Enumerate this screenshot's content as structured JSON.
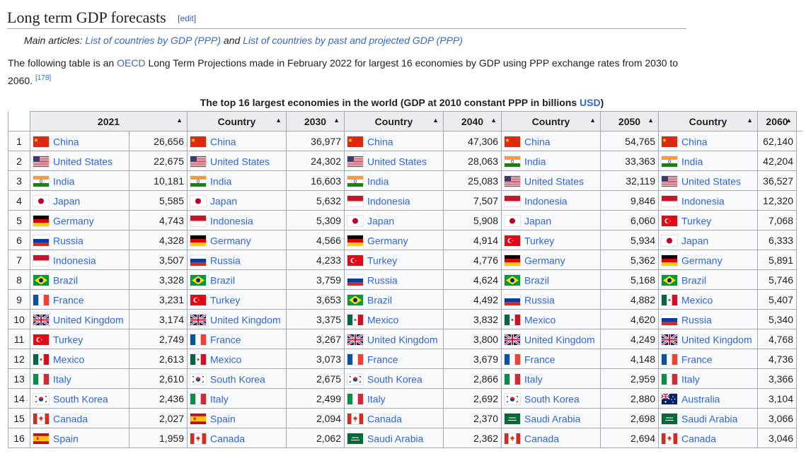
{
  "heading": {
    "title": "Long term GDP forecasts",
    "edit_label": "edit",
    "edit_open": "[",
    "edit_close": "]"
  },
  "hatnote": {
    "prefix": "Main articles:",
    "link1": "List of countries by GDP (PPP)",
    "and": "and",
    "link2": "List of countries by past and projected GDP (PPP)"
  },
  "paragraph": {
    "before_link": "The following table is an",
    "link": "OECD",
    "after_link": "Long Term Projections made in February 2022 for largest 16 economies by GDP using PPP exchange rates from 2030 to 2060.",
    "ref": "[178]"
  },
  "caption": {
    "text": "The top 16 largest economies in the world (GDP at 2010 constant PPP in billions",
    "link": "USD",
    "close": ")"
  },
  "colors": {
    "link": "#3366cc",
    "highlight": "#f77f86",
    "header_bg": "#eaecf0",
    "cell_bg": "#f8f9fa",
    "border": "#a2a9b1"
  },
  "table": {
    "headers": [
      "2021",
      "Country",
      "2030",
      "Country",
      "2040",
      "Country",
      "2050",
      "Country",
      "2060"
    ],
    "highlight_country": "Turkey",
    "rows": [
      {
        "rank": "1",
        "cells": [
          [
            "China",
            "26,656"
          ],
          [
            "China",
            "36,977"
          ],
          [
            "China",
            "47,306"
          ],
          [
            "China",
            "54,765"
          ],
          [
            "China",
            "62,140"
          ]
        ]
      },
      {
        "rank": "2",
        "cells": [
          [
            "United States",
            "22,675"
          ],
          [
            "United States",
            "24,302"
          ],
          [
            "United States",
            "28,063"
          ],
          [
            "India",
            "33,363"
          ],
          [
            "India",
            "42,204"
          ]
        ]
      },
      {
        "rank": "3",
        "cells": [
          [
            "India",
            "10,181"
          ],
          [
            "India",
            "16,603"
          ],
          [
            "India",
            "25,083"
          ],
          [
            "United States",
            "32,119"
          ],
          [
            "United States",
            "36,527"
          ]
        ]
      },
      {
        "rank": "4",
        "cells": [
          [
            "Japan",
            "5,585"
          ],
          [
            "Japan",
            "5,632"
          ],
          [
            "Indonesia",
            "7,507"
          ],
          [
            "Indonesia",
            "9,846"
          ],
          [
            "Indonesia",
            "12,320"
          ]
        ]
      },
      {
        "rank": "5",
        "cells": [
          [
            "Germany",
            "4,743"
          ],
          [
            "Indonesia",
            "5,309"
          ],
          [
            "Japan",
            "5,908"
          ],
          [
            "Japan",
            "6,060"
          ],
          [
            "Turkey",
            "7,068"
          ]
        ]
      },
      {
        "rank": "6",
        "cells": [
          [
            "Russia",
            "4,328"
          ],
          [
            "Germany",
            "4,566"
          ],
          [
            "Germany",
            "4,914"
          ],
          [
            "Turkey",
            "5,934"
          ],
          [
            "Japan",
            "6,333"
          ]
        ]
      },
      {
        "rank": "7",
        "cells": [
          [
            "Indonesia",
            "3,507"
          ],
          [
            "Russia",
            "4,233"
          ],
          [
            "Turkey",
            "4,776"
          ],
          [
            "Germany",
            "5,362"
          ],
          [
            "Germany",
            "5,891"
          ]
        ]
      },
      {
        "rank": "8",
        "cells": [
          [
            "Brazil",
            "3,328"
          ],
          [
            "Brazil",
            "3,759"
          ],
          [
            "Russia",
            "4,624"
          ],
          [
            "Brazil",
            "5,168"
          ],
          [
            "Brazil",
            "5,746"
          ]
        ]
      },
      {
        "rank": "9",
        "cells": [
          [
            "France",
            "3,231"
          ],
          [
            "Turkey",
            "3,653"
          ],
          [
            "Brazil",
            "4,492"
          ],
          [
            "Russia",
            "4,882"
          ],
          [
            "Mexico",
            "5,407"
          ]
        ]
      },
      {
        "rank": "10",
        "cells": [
          [
            "United Kingdom",
            "3,174"
          ],
          [
            "United Kingdom",
            "3,375"
          ],
          [
            "Mexico",
            "3,832"
          ],
          [
            "Mexico",
            "4,620"
          ],
          [
            "Russia",
            "5,340"
          ]
        ]
      },
      {
        "rank": "11",
        "cells": [
          [
            "Turkey",
            "2,749"
          ],
          [
            "France",
            "3,267"
          ],
          [
            "United Kingdom",
            "3,800"
          ],
          [
            "United Kingdom",
            "4,249"
          ],
          [
            "United Kingdom",
            "4,768"
          ]
        ]
      },
      {
        "rank": "12",
        "cells": [
          [
            "Mexico",
            "2,613"
          ],
          [
            "Mexico",
            "3,073"
          ],
          [
            "France",
            "3,679"
          ],
          [
            "France",
            "4,148"
          ],
          [
            "France",
            "4,736"
          ]
        ]
      },
      {
        "rank": "13",
        "cells": [
          [
            "Italy",
            "2,610"
          ],
          [
            "South Korea",
            "2,675"
          ],
          [
            "South Korea",
            "2,866"
          ],
          [
            "Italy",
            "2,959"
          ],
          [
            "Italy",
            "3,366"
          ]
        ]
      },
      {
        "rank": "14",
        "cells": [
          [
            "South Korea",
            "2,436"
          ],
          [
            "Italy",
            "2,499"
          ],
          [
            "Italy",
            "2,692"
          ],
          [
            "South Korea",
            "2,880"
          ],
          [
            "Australia",
            "3,104"
          ]
        ]
      },
      {
        "rank": "15",
        "cells": [
          [
            "Canada",
            "2,027"
          ],
          [
            "Spain",
            "2,094"
          ],
          [
            "Canada",
            "2,370"
          ],
          [
            "Saudi Arabia",
            "2,698"
          ],
          [
            "Saudi Arabia",
            "3,066"
          ]
        ]
      },
      {
        "rank": "16",
        "cells": [
          [
            "Spain",
            "1,959"
          ],
          [
            "Canada",
            "2,062"
          ],
          [
            "Saudi Arabia",
            "2,362"
          ],
          [
            "Canada",
            "2,694"
          ],
          [
            "Canada",
            "3,046"
          ]
        ]
      }
    ]
  }
}
